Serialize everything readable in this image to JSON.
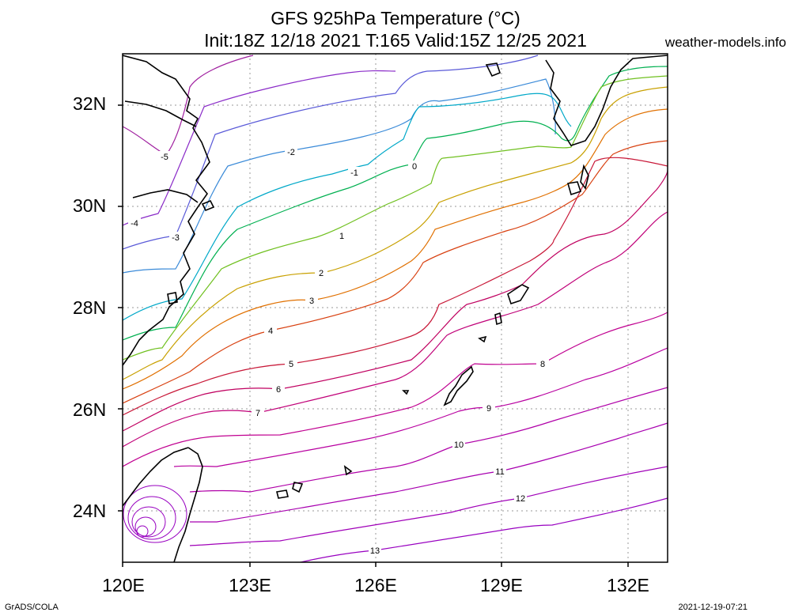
{
  "header": {
    "title_line1": "GFS 925hPa Temperature (°C)",
    "title_line2": "Init:18Z 12/18 2021 T:165 Valid:15Z 12/25 2021",
    "site": "weather-models.info"
  },
  "footer": {
    "left": "GrADS/COLA",
    "right": "2021-12-19-07:21"
  },
  "axes": {
    "lat_labels": [
      "32N",
      "30N",
      "28N",
      "26N",
      "24N"
    ],
    "lon_labels": [
      "120E",
      "123E",
      "126E",
      "129E",
      "132E"
    ]
  },
  "contours": [
    {
      "value": -5,
      "label": "-5",
      "color": "#a020a0"
    },
    {
      "value": -4,
      "label": "-4",
      "color": "#8a2bc8"
    },
    {
      "value": -3,
      "label": "-3",
      "color": "#5a5ad8"
    },
    {
      "value": -2,
      "label": "-2",
      "color": "#3a8ad8"
    },
    {
      "value": -1,
      "label": "-1",
      "color": "#00a8c8"
    },
    {
      "value": 0,
      "label": "0",
      "color": "#00b050"
    },
    {
      "value": 1,
      "label": "1",
      "color": "#70c020"
    },
    {
      "value": 2,
      "label": "2",
      "color": "#c8a000"
    },
    {
      "value": 3,
      "label": "3",
      "color": "#e07000"
    },
    {
      "value": 4,
      "label": "4",
      "color": "#d84010"
    },
    {
      "value": 5,
      "label": "5",
      "color": "#c81838"
    },
    {
      "value": 6,
      "label": "6",
      "color": "#c00060"
    },
    {
      "value": 7,
      "label": "7",
      "color": "#c00078"
    },
    {
      "value": 8,
      "label": "8",
      "color": "#c00090"
    },
    {
      "value": 9,
      "label": "9",
      "color": "#b800a0"
    },
    {
      "value": 10,
      "label": "10",
      "color": "#b000a8"
    },
    {
      "value": 11,
      "label": "11",
      "color": "#a800b0"
    },
    {
      "value": 12,
      "label": "12",
      "color": "#a000b8"
    },
    {
      "value": 13,
      "label": "13",
      "color": "#9800c0"
    }
  ]
}
